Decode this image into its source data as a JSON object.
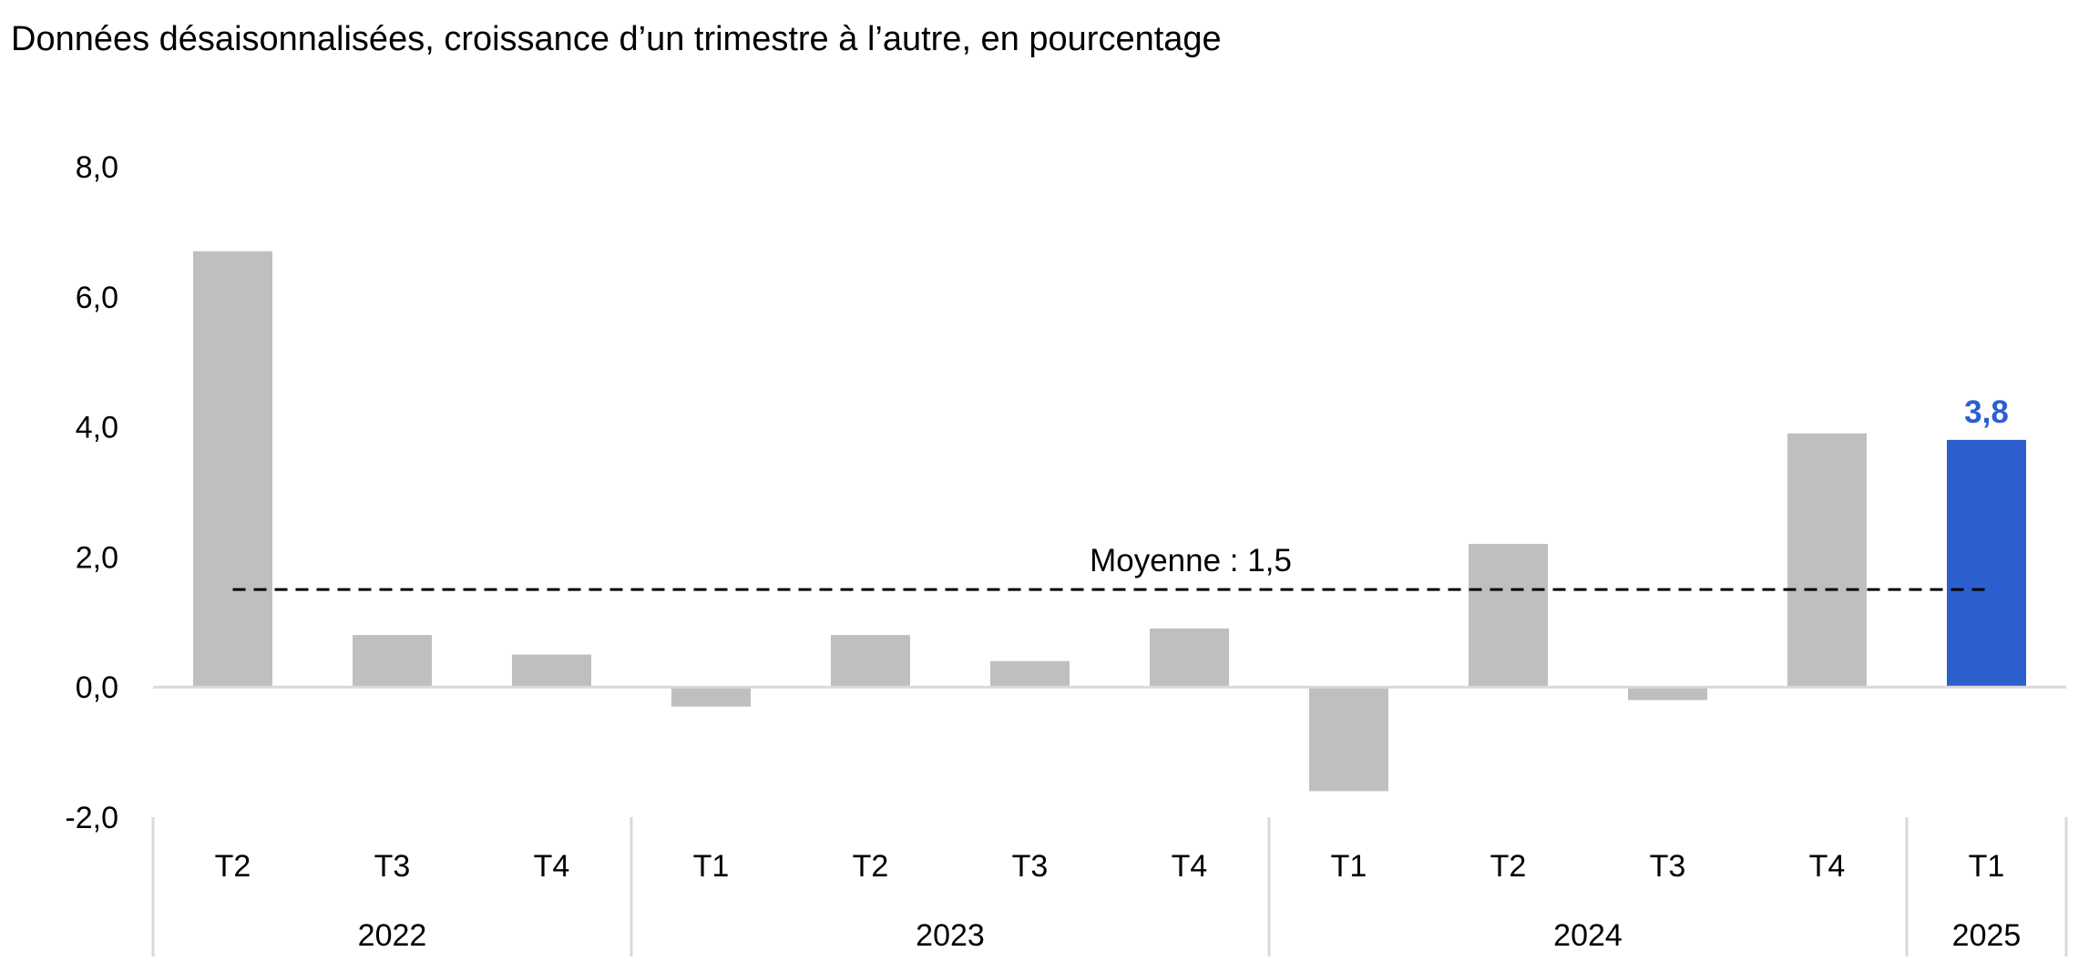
{
  "chart_data": {
    "type": "bar",
    "title": "Données désaisonnalisées, croissance d’un trimestre à l’autre, en pourcentage",
    "categories": [
      "T2",
      "T3",
      "T4",
      "T1",
      "T2",
      "T3",
      "T4",
      "T1",
      "T2",
      "T3",
      "T4",
      "T1"
    ],
    "groups": [
      {
        "label": "2022",
        "count": 3
      },
      {
        "label": "2023",
        "count": 4
      },
      {
        "label": "2024",
        "count": 4
      },
      {
        "label": "2025",
        "count": 1
      }
    ],
    "values": [
      6.7,
      0.8,
      0.5,
      -0.3,
      0.8,
      0.4,
      0.9,
      -1.6,
      2.2,
      -0.2,
      3.9,
      3.8
    ],
    "ylim": [
      -2,
      8
    ],
    "yticks": [
      "8,0",
      "6,0",
      "4,0",
      "2,0",
      "0,0",
      "-2,0"
    ],
    "ytick_values": [
      8,
      6,
      4,
      2,
      0,
      -2
    ],
    "highlight_index": 11,
    "highlight_label": "3,8",
    "average": {
      "value": 1.5,
      "label": "Moyenne : 1,5"
    },
    "colors": {
      "bar": "#bfbfbf",
      "highlight": "#2b5fce",
      "axis": "#d9d9d9",
      "average": "#000000"
    }
  }
}
